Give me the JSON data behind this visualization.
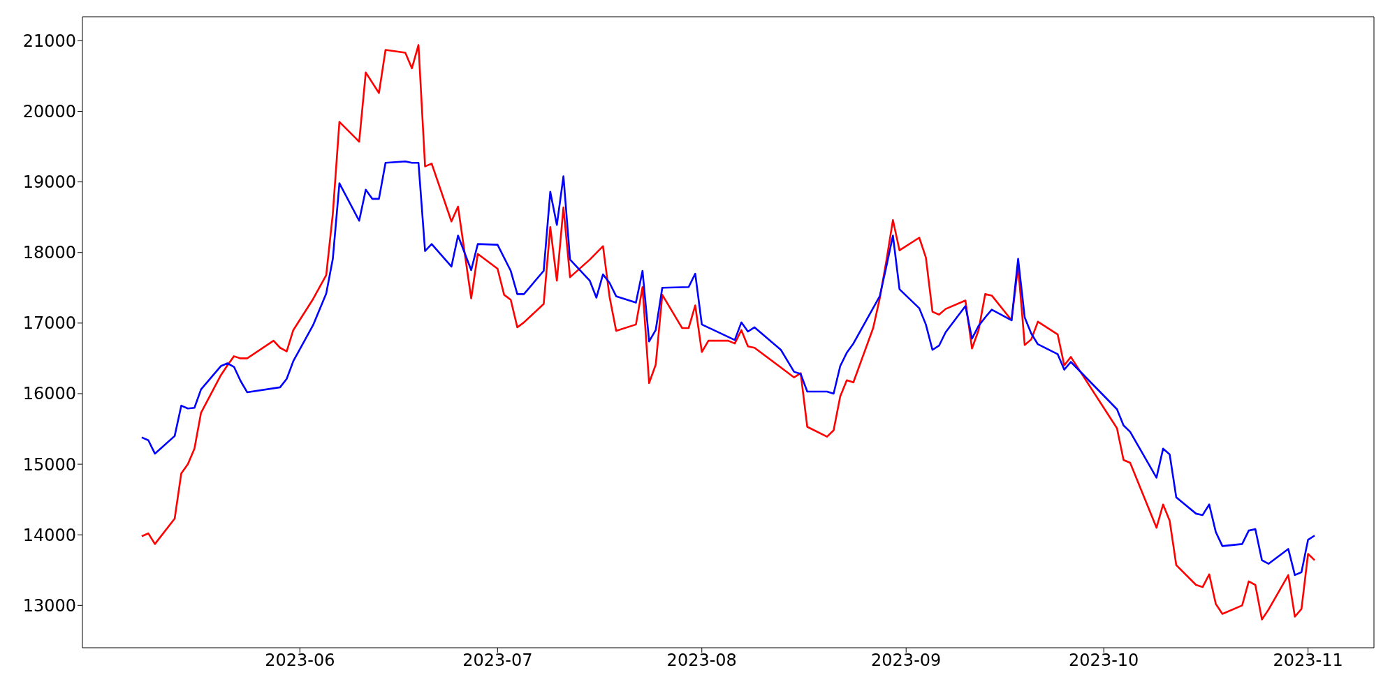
{
  "chart_data": {
    "type": "line",
    "xlim": [
      "2023-04-29",
      "2023-11-11"
    ],
    "xticks": [
      "2023-06",
      "2023-07",
      "2023-08",
      "2023-09",
      "2023-10",
      "2023-11"
    ],
    "ylim": [
      12400,
      21340
    ],
    "yticks": [
      13000,
      14000,
      15000,
      16000,
      17000,
      18000,
      19000,
      20000,
      21000
    ],
    "grid": false,
    "legend": false,
    "marker": "none",
    "line_style": "solid",
    "series": [
      {
        "color": "#ff0000",
        "x": [
          "2023-05-08",
          "2023-05-09",
          "2023-05-10",
          "2023-05-13",
          "2023-05-14",
          "2023-05-15",
          "2023-05-16",
          "2023-05-17",
          "2023-05-20",
          "2023-05-21",
          "2023-05-22",
          "2023-05-23",
          "2023-05-24",
          "2023-05-28",
          "2023-05-29",
          "2023-05-30",
          "2023-05-31",
          "2023-06-03",
          "2023-06-05",
          "2023-06-06",
          "2023-06-07",
          "2023-06-10",
          "2023-06-11",
          "2023-06-13",
          "2023-06-14",
          "2023-06-17",
          "2023-06-18",
          "2023-06-19",
          "2023-06-20",
          "2023-06-21",
          "2023-06-24",
          "2023-06-25",
          "2023-06-27",
          "2023-06-28",
          "2023-07-01",
          "2023-07-02",
          "2023-07-03",
          "2023-07-04",
          "2023-07-05",
          "2023-07-08",
          "2023-07-09",
          "2023-07-10",
          "2023-07-11",
          "2023-07-12",
          "2023-07-15",
          "2023-07-17",
          "2023-07-18",
          "2023-07-19",
          "2023-07-22",
          "2023-07-23",
          "2023-07-24",
          "2023-07-25",
          "2023-07-26",
          "2023-07-29",
          "2023-07-30",
          "2023-07-31",
          "2023-08-01",
          "2023-08-02",
          "2023-08-05",
          "2023-08-06",
          "2023-08-07",
          "2023-08-08",
          "2023-08-09",
          "2023-08-13",
          "2023-08-15",
          "2023-08-16",
          "2023-08-17",
          "2023-08-20",
          "2023-08-21",
          "2023-08-22",
          "2023-08-23",
          "2023-08-24",
          "2023-08-27",
          "2023-08-28",
          "2023-08-29",
          "2023-08-30",
          "2023-08-31",
          "2023-09-03",
          "2023-09-04",
          "2023-09-05",
          "2023-09-06",
          "2023-09-07",
          "2023-09-10",
          "2023-09-11",
          "2023-09-12",
          "2023-09-13",
          "2023-09-14",
          "2023-09-17",
          "2023-09-18",
          "2023-09-19",
          "2023-09-20",
          "2023-09-21",
          "2023-09-24",
          "2023-09-25",
          "2023-09-26",
          "2023-10-03",
          "2023-10-04",
          "2023-10-05",
          "2023-10-09",
          "2023-10-10",
          "2023-10-11",
          "2023-10-12",
          "2023-10-15",
          "2023-10-16",
          "2023-10-17",
          "2023-10-18",
          "2023-10-19",
          "2023-10-22",
          "2023-10-23",
          "2023-10-24",
          "2023-10-25",
          "2023-10-26",
          "2023-10-29",
          "2023-10-30",
          "2023-10-31",
          "2023-11-01",
          "2023-11-02"
        ],
        "values": [
          13980,
          14020,
          13870,
          14230,
          14870,
          15000,
          15220,
          15730,
          16260,
          16400,
          16530,
          16500,
          16500,
          16750,
          16650,
          16600,
          16900,
          17340,
          17680,
          18550,
          19850,
          19570,
          20550,
          20260,
          20870,
          20830,
          20610,
          20940,
          19220,
          19260,
          18440,
          18650,
          17350,
          17980,
          17770,
          17400,
          17330,
          16940,
          17010,
          17270,
          18360,
          17600,
          18640,
          17650,
          17900,
          18090,
          17370,
          16890,
          16980,
          17510,
          16150,
          16410,
          17400,
          16930,
          16930,
          17250,
          16590,
          16750,
          16750,
          16710,
          16900,
          16670,
          16650,
          16370,
          16230,
          16290,
          15530,
          15390,
          15480,
          15960,
          16190,
          16160,
          16930,
          17350,
          17880,
          18460,
          18030,
          18210,
          17930,
          17160,
          17120,
          17200,
          17320,
          16640,
          16900,
          17410,
          17390,
          17040,
          17800,
          16690,
          16770,
          17020,
          16840,
          16400,
          16520,
          15510,
          15060,
          15020,
          14100,
          14430,
          14200,
          13570,
          13290,
          13260,
          13440,
          13020,
          12880,
          13000,
          13340,
          13290,
          12800,
          12940,
          13430,
          12840,
          12950,
          13730,
          13640
        ]
      },
      {
        "color": "#0000ff",
        "x": [
          "2023-05-08",
          "2023-05-09",
          "2023-05-10",
          "2023-05-13",
          "2023-05-14",
          "2023-05-15",
          "2023-05-16",
          "2023-05-17",
          "2023-05-20",
          "2023-05-21",
          "2023-05-22",
          "2023-05-23",
          "2023-05-24",
          "2023-05-29",
          "2023-05-30",
          "2023-05-31",
          "2023-06-03",
          "2023-06-05",
          "2023-06-06",
          "2023-06-07",
          "2023-06-10",
          "2023-06-11",
          "2023-06-12",
          "2023-06-13",
          "2023-06-14",
          "2023-06-17",
          "2023-06-18",
          "2023-06-19",
          "2023-06-20",
          "2023-06-21",
          "2023-06-24",
          "2023-06-25",
          "2023-06-27",
          "2023-06-28",
          "2023-07-01",
          "2023-07-03",
          "2023-07-04",
          "2023-07-05",
          "2023-07-08",
          "2023-07-09",
          "2023-07-10",
          "2023-07-11",
          "2023-07-12",
          "2023-07-15",
          "2023-07-16",
          "2023-07-17",
          "2023-07-18",
          "2023-07-19",
          "2023-07-22",
          "2023-07-23",
          "2023-07-24",
          "2023-07-25",
          "2023-07-26",
          "2023-07-30",
          "2023-07-31",
          "2023-08-01",
          "2023-08-06",
          "2023-08-07",
          "2023-08-08",
          "2023-08-09",
          "2023-08-13",
          "2023-08-15",
          "2023-08-16",
          "2023-08-17",
          "2023-08-20",
          "2023-08-21",
          "2023-08-22",
          "2023-08-23",
          "2023-08-24",
          "2023-08-28",
          "2023-08-29",
          "2023-08-30",
          "2023-08-31",
          "2023-09-03",
          "2023-09-04",
          "2023-09-05",
          "2023-09-06",
          "2023-09-07",
          "2023-09-10",
          "2023-09-11",
          "2023-09-12",
          "2023-09-13",
          "2023-09-14",
          "2023-09-17",
          "2023-09-18",
          "2023-09-19",
          "2023-09-20",
          "2023-09-21",
          "2023-09-24",
          "2023-09-25",
          "2023-09-26",
          "2023-10-03",
          "2023-10-04",
          "2023-10-05",
          "2023-10-09",
          "2023-10-10",
          "2023-10-11",
          "2023-10-12",
          "2023-10-15",
          "2023-10-16",
          "2023-10-17",
          "2023-10-18",
          "2023-10-19",
          "2023-10-22",
          "2023-10-23",
          "2023-10-24",
          "2023-10-25",
          "2023-10-26",
          "2023-10-29",
          "2023-10-30",
          "2023-10-31",
          "2023-11-01",
          "2023-11-02"
        ],
        "values": [
          15380,
          15340,
          15150,
          15400,
          15830,
          15790,
          15800,
          16060,
          16390,
          16430,
          16380,
          16180,
          16020,
          16090,
          16210,
          16460,
          16970,
          17420,
          17910,
          18980,
          18450,
          18890,
          18760,
          18760,
          19270,
          19290,
          19270,
          19270,
          18020,
          18120,
          17800,
          18240,
          17750,
          18120,
          18110,
          17740,
          17410,
          17410,
          17740,
          18860,
          18390,
          19080,
          17900,
          17600,
          17360,
          17690,
          17570,
          17380,
          17290,
          17740,
          16740,
          16900,
          17500,
          17510,
          17700,
          16980,
          16760,
          17010,
          16880,
          16940,
          16620,
          16310,
          16280,
          16030,
          16030,
          16000,
          16390,
          16580,
          16710,
          17380,
          17800,
          18240,
          17480,
          17210,
          16980,
          16620,
          16680,
          16870,
          17240,
          16780,
          16960,
          17080,
          17190,
          17040,
          17910,
          17080,
          16850,
          16700,
          16560,
          16340,
          16450,
          15780,
          15550,
          15460,
          14810,
          15220,
          15140,
          14530,
          14300,
          14280,
          14430,
          14040,
          13840,
          13870,
          14060,
          14080,
          13640,
          13590,
          13800,
          13430,
          13470,
          13930,
          13990
        ]
      }
    ]
  }
}
